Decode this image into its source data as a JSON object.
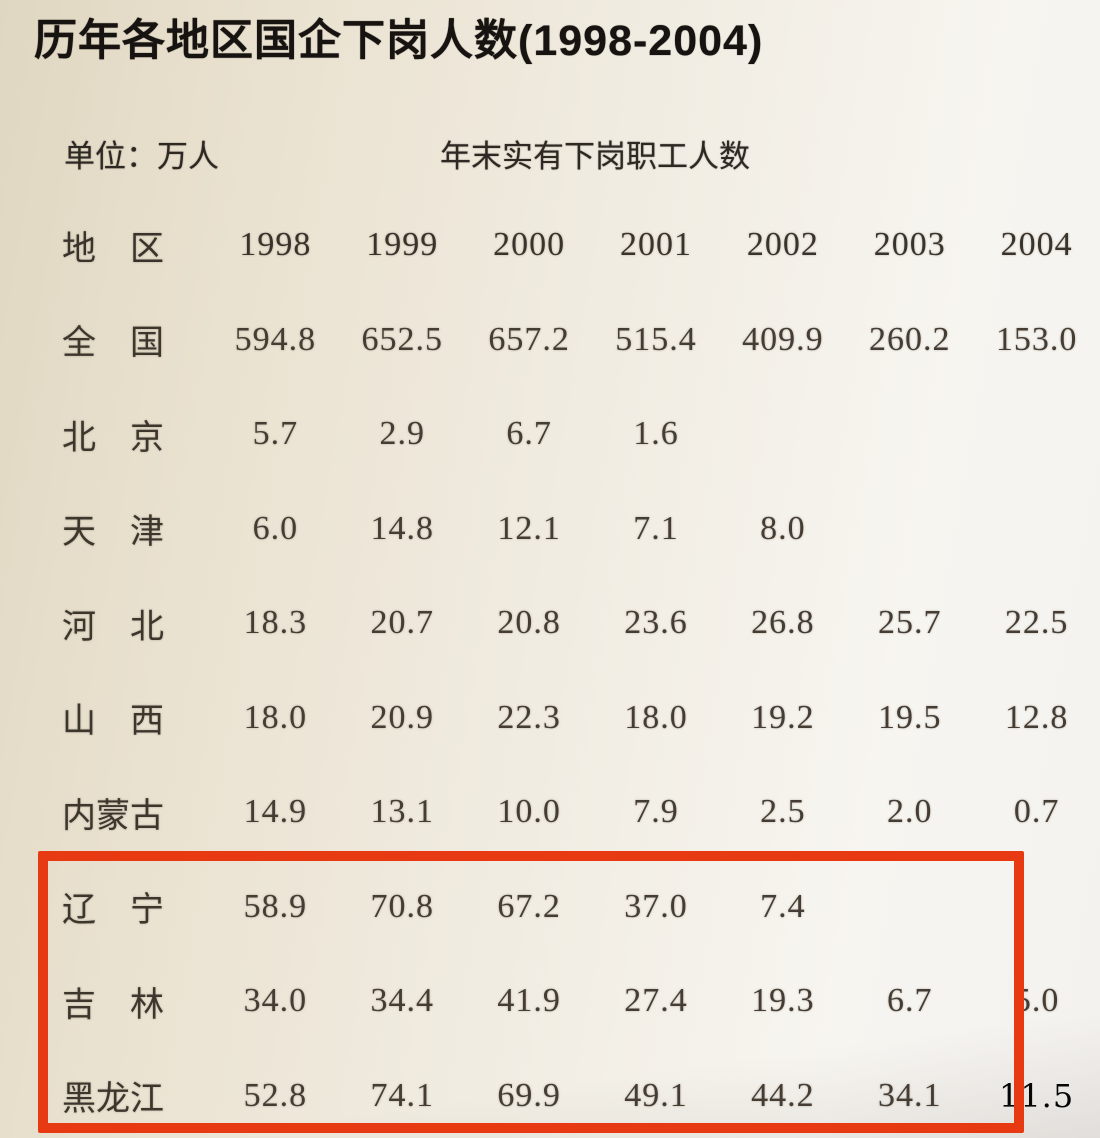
{
  "title": "历年各地区国企下岗人数(1998-2004)",
  "unit_label": "单位：万人",
  "subtitle": "年末实有下岗职工人数",
  "table": {
    "header": {
      "region": "地　区",
      "years": [
        "1998",
        "1999",
        "2000",
        "2001",
        "2002",
        "2003",
        "2004"
      ]
    },
    "rows": [
      {
        "region": "全　国",
        "values": [
          "594.8",
          "652.5",
          "657.2",
          "515.4",
          "409.9",
          "260.2",
          "153.0"
        ]
      },
      {
        "region": "北　京",
        "values": [
          "5.7",
          "2.9",
          "6.7",
          "1.6",
          "",
          "",
          ""
        ]
      },
      {
        "region": "天　津",
        "values": [
          "6.0",
          "14.8",
          "12.1",
          "7.1",
          "8.0",
          "",
          ""
        ]
      },
      {
        "region": "河　北",
        "values": [
          "18.3",
          "20.7",
          "20.8",
          "23.6",
          "26.8",
          "25.7",
          "22.5"
        ]
      },
      {
        "region": "山　西",
        "values": [
          "18.0",
          "20.9",
          "22.3",
          "18.0",
          "19.2",
          "19.5",
          "12.8"
        ]
      },
      {
        "region": "内蒙古",
        "values": [
          "14.9",
          "13.1",
          "10.0",
          "7.9",
          "2.5",
          "2.0",
          "0.7"
        ]
      },
      {
        "region": "辽　宁",
        "values": [
          "58.9",
          "70.8",
          "67.2",
          "37.0",
          "7.4",
          "",
          ""
        ]
      },
      {
        "region": "吉　林",
        "values": [
          "34.0",
          "34.4",
          "41.9",
          "27.4",
          "19.3",
          "6.7",
          "5.0"
        ]
      },
      {
        "region": "黑龙江",
        "values": [
          "52.8",
          "74.1",
          "69.9",
          "49.1",
          "44.2",
          "34.1",
          "11.5"
        ],
        "distinct_cols": [
          6
        ]
      }
    ]
  },
  "annotation": {
    "highlight_box_color": "#e83a12",
    "highlighted_regions": [
      "辽宁",
      "吉林",
      "黑龙江"
    ]
  }
}
